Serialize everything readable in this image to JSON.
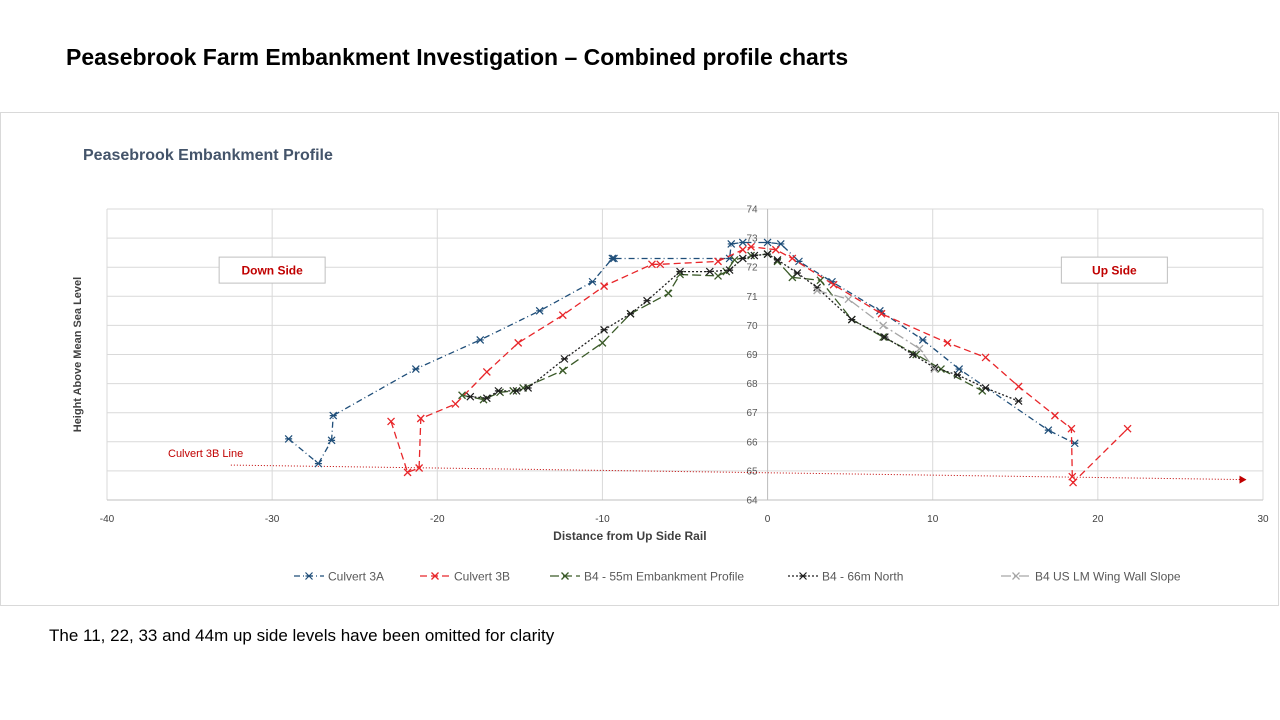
{
  "slide": {
    "title": "Peasebrook Farm Embankment Investigation – Combined profile charts",
    "note": "The 11, 22, 33 and 44m up side levels have been omitted for clarity"
  },
  "chart_data": {
    "type": "scatter",
    "title": "Peasebrook Embankment Profile",
    "xlabel": "Distance from Up Side Rail",
    "ylabel": "Height Above Mean Sea Level",
    "xlim": [
      -40,
      30
    ],
    "ylim": [
      64,
      74
    ],
    "xticks": [
      -40,
      -30,
      -20,
      -10,
      0,
      10,
      20,
      30
    ],
    "yticks": [
      64,
      65,
      66,
      67,
      68,
      69,
      70,
      71,
      72,
      73,
      74
    ],
    "grid": true,
    "legend_position": "bottom",
    "text_boxes": [
      {
        "label": "Down Side",
        "x": -30,
        "y": 71.9,
        "color": "#c00000"
      },
      {
        "label": "Up Side",
        "x": 21,
        "y": 71.9,
        "color": "#c00000"
      }
    ],
    "culvert_line": {
      "label": "Culvert 3B Line",
      "color": "#c00000",
      "points": [
        [
          -32.5,
          65.2
        ],
        [
          29,
          64.7
        ]
      ]
    },
    "series": [
      {
        "name": "Culvert 3A",
        "color": "#1f4e79",
        "dash": "6,3,1,3",
        "points": [
          [
            -29,
            66.1
          ],
          [
            -27.2,
            65.25
          ],
          [
            -26.4,
            66.05
          ],
          [
            -26.3,
            66.9
          ],
          [
            -21.3,
            68.5
          ],
          [
            -17.4,
            69.5
          ],
          [
            -13.8,
            70.5
          ],
          [
            -10.6,
            71.5
          ],
          [
            -9.4,
            72.3
          ],
          [
            -9.3,
            72.3
          ],
          [
            -2.3,
            72.3
          ],
          [
            -2.2,
            72.8
          ],
          [
            -1.5,
            72.85
          ],
          [
            0,
            72.85
          ],
          [
            0.8,
            72.8
          ],
          [
            1.9,
            72.2
          ],
          [
            3.9,
            71.5
          ],
          [
            6.8,
            70.5
          ],
          [
            9.4,
            69.5
          ],
          [
            11.6,
            68.5
          ],
          [
            17.0,
            66.4
          ],
          [
            18.6,
            65.95
          ]
        ]
      },
      {
        "name": "Culvert 3B",
        "color": "#e8262a",
        "dash": "7,4",
        "points": [
          [
            -22.8,
            66.7
          ],
          [
            -21.8,
            64.95
          ],
          [
            -21.1,
            65.1
          ],
          [
            -21.0,
            66.8
          ],
          [
            -18.9,
            67.3
          ],
          [
            -17.0,
            68.4
          ],
          [
            -15.1,
            69.4
          ],
          [
            -12.4,
            70.35
          ],
          [
            -9.9,
            71.35
          ],
          [
            -7.0,
            72.1
          ],
          [
            -6.5,
            72.1
          ],
          [
            -3.0,
            72.2
          ],
          [
            -1.5,
            72.6
          ],
          [
            -1.0,
            72.7
          ],
          [
            0.5,
            72.6
          ],
          [
            1.5,
            72.3
          ],
          [
            4.0,
            71.4
          ],
          [
            6.9,
            70.4
          ],
          [
            10.9,
            69.4
          ],
          [
            13.2,
            68.9
          ],
          [
            15.2,
            67.9
          ],
          [
            17.4,
            66.9
          ],
          [
            18.4,
            66.45
          ],
          [
            18.45,
            64.8
          ],
          [
            18.5,
            64.6
          ],
          [
            21.8,
            66.45
          ]
        ]
      },
      {
        "name": "B4 - 55m Embankment Profile",
        "color": "#3a5a28",
        "dash": "9,4",
        "points": [
          [
            -18.5,
            67.6
          ],
          [
            -17.2,
            67.45
          ],
          [
            -16.2,
            67.7
          ],
          [
            -15.4,
            67.75
          ],
          [
            -14.8,
            67.85
          ],
          [
            -12.4,
            68.45
          ],
          [
            -10.0,
            69.4
          ],
          [
            -8.3,
            70.4
          ],
          [
            -6.0,
            71.1
          ],
          [
            -5.3,
            71.75
          ],
          [
            -3.0,
            71.7
          ],
          [
            -2.5,
            71.85
          ],
          [
            -2.0,
            72.25
          ],
          [
            -1.0,
            72.4
          ],
          [
            0,
            72.45
          ],
          [
            0.6,
            72.2
          ],
          [
            1.5,
            71.65
          ],
          [
            3.2,
            71.55
          ],
          [
            5.1,
            70.2
          ],
          [
            7.0,
            69.6
          ],
          [
            9.0,
            69.0
          ],
          [
            10.5,
            68.5
          ],
          [
            13.0,
            67.75
          ]
        ]
      },
      {
        "name": "B4 - 66m North",
        "color": "#1f1f1f",
        "dash": "2,2",
        "points": [
          [
            -18.0,
            67.55
          ],
          [
            -17.0,
            67.5
          ],
          [
            -16.3,
            67.75
          ],
          [
            -15.2,
            67.75
          ],
          [
            -14.5,
            67.85
          ],
          [
            -12.3,
            68.85
          ],
          [
            -9.9,
            69.85
          ],
          [
            -8.3,
            70.4
          ],
          [
            -7.3,
            70.85
          ],
          [
            -5.3,
            71.85
          ],
          [
            -3.5,
            71.85
          ],
          [
            -2.3,
            71.9
          ],
          [
            -1.5,
            72.3
          ],
          [
            -0.8,
            72.4
          ],
          [
            0,
            72.45
          ],
          [
            0.6,
            72.25
          ],
          [
            1.8,
            71.8
          ],
          [
            3.0,
            71.3
          ],
          [
            5.1,
            70.2
          ],
          [
            7.1,
            69.6
          ],
          [
            8.8,
            69.0
          ],
          [
            10.1,
            68.55
          ],
          [
            11.5,
            68.3
          ],
          [
            13.2,
            67.85
          ],
          [
            15.2,
            67.4
          ]
        ]
      },
      {
        "name": "B4 US LM Wing Wall Slope",
        "color": "#a6a6a6",
        "dash": "10,3,2,3",
        "points": [
          [
            3.0,
            71.2
          ],
          [
            4.9,
            70.9
          ],
          [
            7.0,
            70.0
          ],
          [
            9.2,
            69.2
          ],
          [
            10.1,
            68.5
          ]
        ]
      }
    ]
  }
}
